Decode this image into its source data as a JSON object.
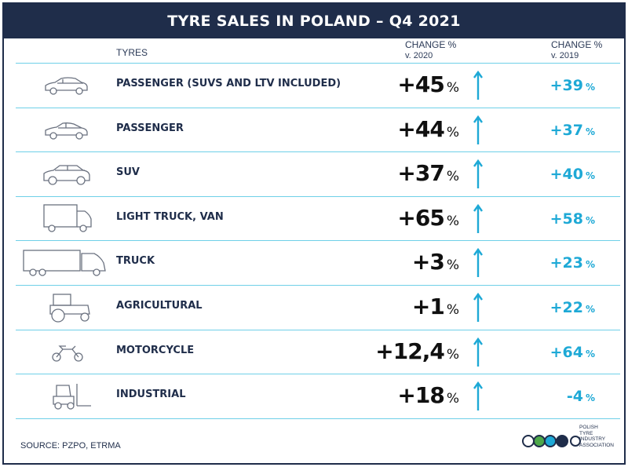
{
  "title": "TYRE SALES IN POLAND – Q4 2021",
  "headers": {
    "tyres": "TYRES",
    "change_2020_top": "CHANGE %",
    "change_2020_bottom": "v. 2020",
    "change_2019_top": "CHANGE %",
    "change_2019_bottom": "v. 2019"
  },
  "rows": [
    {
      "label": "PASSENGER (SUVS AND LTV INCLUDED)",
      "icon": "car-icon",
      "v2020": "+45",
      "v2019": "+39",
      "pct": "%"
    },
    {
      "label": "PASSENGER",
      "icon": "car-icon",
      "v2020": "+44",
      "v2019": "+37",
      "pct": "%"
    },
    {
      "label": "SUV",
      "icon": "suv-icon",
      "v2020": "+37",
      "v2019": "+40",
      "pct": "%"
    },
    {
      "label": "LIGHT TRUCK, VAN",
      "icon": "van-icon",
      "v2020": "+65",
      "v2019": "+58",
      "pct": "%"
    },
    {
      "label": "TRUCK",
      "icon": "truck-icon",
      "v2020": "+3",
      "v2019": "+23",
      "pct": "%"
    },
    {
      "label": "AGRICULTURAL",
      "icon": "tractor-icon",
      "v2020": "+1",
      "v2019": "+22",
      "pct": "%"
    },
    {
      "label": "MOTORCYCLE",
      "icon": "motorcycle-icon",
      "v2020": "+12,4",
      "v2019": "+64",
      "pct": "%"
    },
    {
      "label": "INDUSTRIAL",
      "icon": "forklift-icon",
      "v2020": "+18",
      "v2019": "-4",
      "pct": "%"
    }
  ],
  "source": "SOURCE: PZPO, ETRMA",
  "logo": {
    "line1": "POLISH",
    "line2": "TYRE",
    "line3": "INDUSTRY",
    "line4": "ASSOCIATION"
  },
  "colors": {
    "navy": "#1f2d4a",
    "accent": "#1ea9d6",
    "rule": "#6fd0e8"
  }
}
